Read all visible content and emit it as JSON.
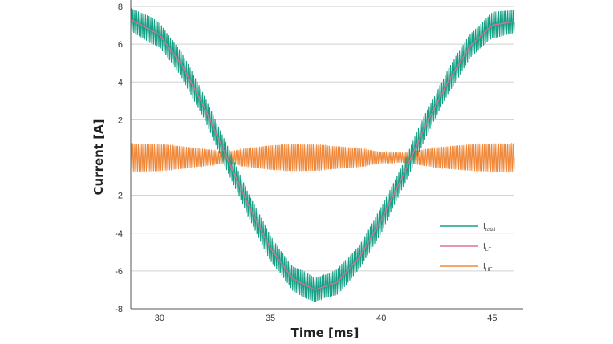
{
  "chart_data": {
    "type": "line",
    "xlabel": "Time [ms]",
    "ylabel": "Current [A]",
    "xlim": [
      28.7,
      46.0
    ],
    "ylim": [
      -8,
      8
    ],
    "x_ticks": [
      30,
      35,
      40,
      45
    ],
    "y_ticks": [
      8,
      6,
      4,
      2,
      -2,
      -4,
      -6,
      -8
    ],
    "y_tick_labels": [
      "8",
      "6",
      "4",
      "2",
      "-2",
      "-4",
      "-6",
      "-8"
    ],
    "grid": "horizontal",
    "legend_position": "bottom-right",
    "series": [
      {
        "name": "I",
        "subscript": "total",
        "color": "#17a085",
        "description": "low-frequency sinusoid plus high-frequency ripple",
        "x": [
          28.7,
          30.0,
          31.0,
          32.0,
          33.0,
          34.0,
          35.0,
          36.0,
          37.0,
          38.0,
          39.0,
          40.0,
          41.0,
          42.0,
          43.0,
          44.0,
          45.0,
          46.0
        ],
        "y": [
          7.3,
          6.5,
          4.9,
          2.7,
          0.1,
          -2.5,
          -4.8,
          -6.4,
          -7.0,
          -6.6,
          -5.3,
          -3.3,
          -0.9,
          1.7,
          4.0,
          5.9,
          7.0,
          7.2
        ],
        "ripple_amplitude": 0.7
      },
      {
        "name": "I",
        "subscript": "LF",
        "color": "#e0709a",
        "x": [
          28.7,
          30.0,
          31.0,
          32.0,
          33.0,
          34.0,
          35.0,
          36.0,
          37.0,
          38.0,
          39.0,
          40.0,
          41.0,
          42.0,
          43.0,
          44.0,
          45.0,
          46.0
        ],
        "y": [
          7.3,
          6.5,
          4.9,
          2.7,
          0.1,
          -2.5,
          -4.8,
          -6.4,
          -7.0,
          -6.6,
          -5.3,
          -3.3,
          -0.9,
          1.7,
          4.0,
          5.9,
          7.0,
          7.2
        ]
      },
      {
        "name": "I",
        "subscript": "HF",
        "color": "#f0883a",
        "description": "high-frequency oscillation around 0 A",
        "x": [
          28.7,
          30.0,
          31.0,
          32.0,
          33.0,
          34.0,
          35.0,
          36.0,
          37.0,
          38.0,
          39.0,
          40.0,
          41.0,
          42.0,
          43.0,
          44.0,
          45.0,
          46.0
        ],
        "envelope": [
          0.75,
          0.72,
          0.6,
          0.45,
          0.3,
          0.5,
          0.65,
          0.72,
          0.7,
          0.6,
          0.5,
          0.3,
          0.25,
          0.45,
          0.6,
          0.7,
          0.75,
          0.75
        ]
      }
    ]
  }
}
